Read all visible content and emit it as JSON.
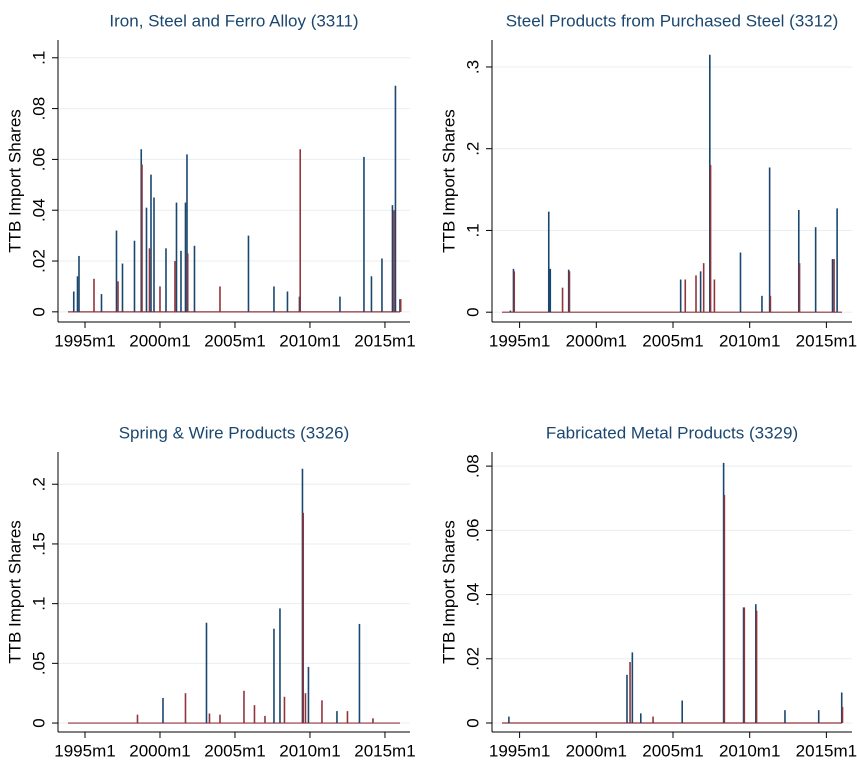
{
  "chart_data": [
    {
      "type": "spike",
      "title": "Iron, Steel and Ferro Alloy (3311)",
      "y_label": "TTB Import Shares",
      "xlim": [
        1993.2,
        2016.67
      ],
      "ylim": [
        -0.004,
        0.107
      ],
      "xticks": [
        {
          "value": 1995,
          "label": "1995m1"
        },
        {
          "value": 2000,
          "label": "2000m1"
        },
        {
          "value": 2005,
          "label": "2005m1"
        },
        {
          "value": 2010,
          "label": "2010m1"
        },
        {
          "value": 2015,
          "label": "2015m1"
        }
      ],
      "yticks": [
        0,
        {
          "value": 0.02,
          "label": ".02"
        },
        {
          "value": 0.04,
          "label": ".04"
        },
        {
          "value": 0.06,
          "label": ".06"
        },
        {
          "value": 0.08,
          "label": ".08"
        },
        {
          "value": 0.1,
          "label": ".1"
        }
      ],
      "grid": true,
      "series": [
        {
          "color": "#1a476f",
          "x": [
            1994.25,
            1994.5,
            1994.6,
            1996.1,
            1997.1,
            1997.5,
            1998.3,
            1998.75,
            1999.1,
            1999.4,
            1999.6,
            2000.4,
            2001.1,
            2001.4,
            2001.7,
            2001.8,
            2002.3,
            2005.9,
            2007.6,
            2008.5,
            2009.3,
            2012.0,
            2013.6,
            2014.1,
            2014.8,
            2015.5,
            2015.7,
            2016.0
          ],
          "values": [
            0.008,
            0.014,
            0.022,
            0.007,
            0.032,
            0.019,
            0.028,
            0.064,
            0.041,
            0.054,
            0.045,
            0.025,
            0.043,
            0.024,
            0.043,
            0.062,
            0.026,
            0.03,
            0.01,
            0.008,
            0.006,
            0.006,
            0.061,
            0.014,
            0.021,
            0.042,
            0.089,
            0.005
          ]
        },
        {
          "color": "#90353b",
          "x": [
            1995.6,
            1997.2,
            1998.8,
            1999.3,
            2000.0,
            2001.0,
            2001.85,
            2004.0,
            2009.35,
            2015.6,
            2016.05
          ],
          "values": [
            0.013,
            0.012,
            0.058,
            0.025,
            0.01,
            0.02,
            0.023,
            0.01,
            0.064,
            0.04,
            0.005
          ]
        }
      ]
    },
    {
      "type": "spike",
      "title": "Steel Products from Purchased Steel (3312)",
      "y_label": "TTB Import Shares",
      "xlim": [
        1993.2,
        2016.67
      ],
      "ylim": [
        -0.012,
        0.333
      ],
      "xticks": [
        {
          "value": 1995,
          "label": "1995m1"
        },
        {
          "value": 2000,
          "label": "2000m1"
        },
        {
          "value": 2005,
          "label": "2005m1"
        },
        {
          "value": 2010,
          "label": "2010m1"
        },
        {
          "value": 2015,
          "label": "2015m1"
        }
      ],
      "yticks": [
        0,
        {
          "value": 0.1,
          "label": ".1"
        },
        {
          "value": 0.2,
          "label": ".2"
        },
        {
          "value": 0.3,
          "label": ".3"
        }
      ],
      "grid": true,
      "series": [
        {
          "color": "#1a476f",
          "x": [
            1994.4,
            1994.6,
            1996.9,
            1997.0,
            1998.2,
            2005.5,
            2006.8,
            2007.4,
            2009.4,
            2010.8,
            2011.3,
            2013.2,
            2014.3,
            2015.4,
            2015.7
          ],
          "values": [
            0.002,
            0.053,
            0.123,
            0.053,
            0.052,
            0.04,
            0.05,
            0.315,
            0.073,
            0.02,
            0.177,
            0.125,
            0.104,
            0.065,
            0.127
          ]
        },
        {
          "color": "#90353b",
          "x": [
            1994.65,
            1997.8,
            1998.25,
            2005.8,
            2006.5,
            2007.0,
            2007.45,
            2007.7,
            2011.35,
            2013.25,
            2015.5
          ],
          "values": [
            0.05,
            0.03,
            0.05,
            0.04,
            0.045,
            0.06,
            0.18,
            0.04,
            0.02,
            0.06,
            0.065
          ]
        }
      ]
    },
    {
      "type": "spike",
      "title": "Spring & Wire Products (3326)",
      "y_label": "TTB Import Shares",
      "xlim": [
        1993.2,
        2016.67
      ],
      "ylim": [
        -0.0075,
        0.227
      ],
      "xticks": [
        {
          "value": 1995,
          "label": "1995m1"
        },
        {
          "value": 2000,
          "label": "2000m1"
        },
        {
          "value": 2005,
          "label": "2005m1"
        },
        {
          "value": 2010,
          "label": "2010m1"
        },
        {
          "value": 2015,
          "label": "2015m1"
        }
      ],
      "yticks": [
        0,
        {
          "value": 0.05,
          "label": ".05"
        },
        {
          "value": 0.1,
          "label": ".1"
        },
        {
          "value": 0.15,
          "label": ".15"
        },
        {
          "value": 0.2,
          "label": ".2"
        }
      ],
      "grid": true,
      "series": [
        {
          "color": "#1a476f",
          "x": [
            2000.2,
            2003.1,
            2007.6,
            2008.0,
            2009.5,
            2009.9,
            2011.8,
            2013.3
          ],
          "values": [
            0.021,
            0.084,
            0.079,
            0.096,
            0.213,
            0.047,
            0.01,
            0.083
          ]
        },
        {
          "color": "#90353b",
          "x": [
            1998.5,
            2001.7,
            2003.3,
            2004.0,
            2005.6,
            2006.3,
            2007.0,
            2008.3,
            2009.55,
            2009.7,
            2010.8,
            2012.5,
            2014.2
          ],
          "values": [
            0.007,
            0.025,
            0.008,
            0.007,
            0.027,
            0.015,
            0.006,
            0.022,
            0.176,
            0.025,
            0.019,
            0.01,
            0.004
          ]
        }
      ]
    },
    {
      "type": "spike",
      "title": "Fabricated Metal Products (3329)",
      "y_label": "TTB Import Shares",
      "xlim": [
        1993.2,
        2016.67
      ],
      "ylim": [
        -0.0028,
        0.0844
      ],
      "xticks": [
        {
          "value": 1995,
          "label": "1995m1"
        },
        {
          "value": 2000,
          "label": "2000m1"
        },
        {
          "value": 2005,
          "label": "2005m1"
        },
        {
          "value": 2010,
          "label": "2010m1"
        },
        {
          "value": 2015,
          "label": "2015m1"
        }
      ],
      "yticks": [
        0,
        {
          "value": 0.02,
          "label": ".02"
        },
        {
          "value": 0.04,
          "label": ".04"
        },
        {
          "value": 0.06,
          "label": ".06"
        },
        {
          "value": 0.08,
          "label": ".08"
        }
      ],
      "grid": true,
      "series": [
        {
          "color": "#1a476f",
          "x": [
            1994.3,
            2002.0,
            2002.35,
            2002.9,
            2005.6,
            2008.3,
            2009.6,
            2010.4,
            2012.3,
            2014.5,
            2016.0
          ],
          "values": [
            0.002,
            0.015,
            0.022,
            0.003,
            0.007,
            0.081,
            0.036,
            0.037,
            0.004,
            0.004,
            0.0095
          ]
        },
        {
          "color": "#90353b",
          "x": [
            2002.2,
            2003.7,
            2008.35,
            2009.65,
            2010.45,
            2016.05
          ],
          "values": [
            0.019,
            0.002,
            0.071,
            0.036,
            0.035,
            0.005
          ]
        }
      ]
    }
  ]
}
